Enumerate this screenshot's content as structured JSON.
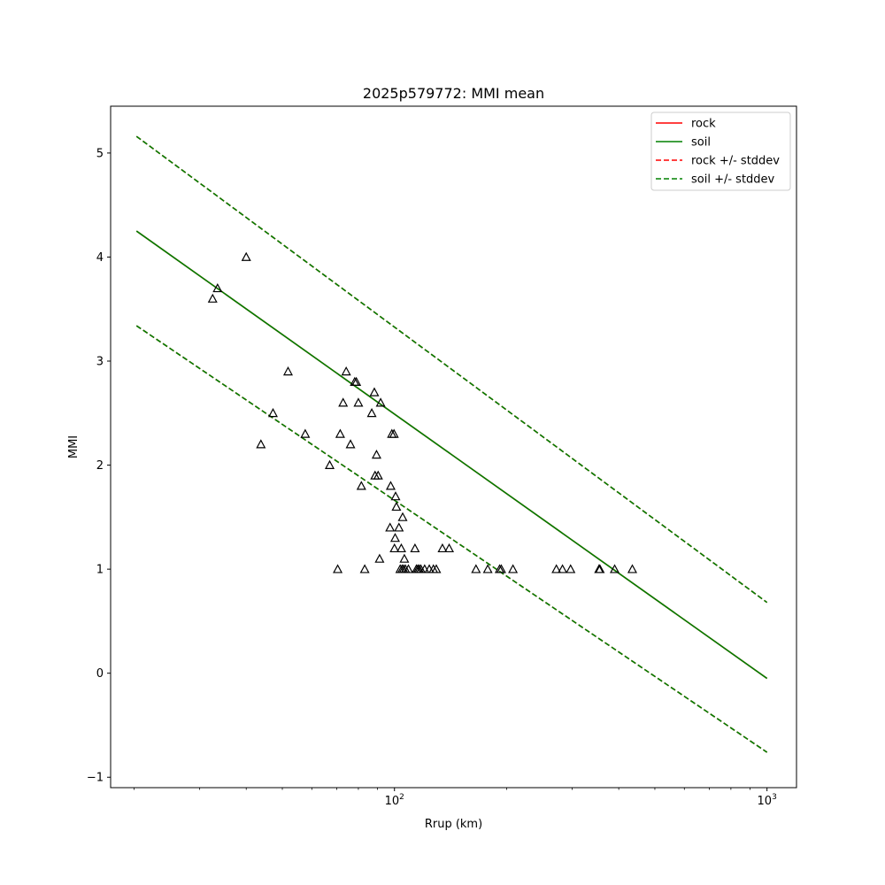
{
  "chart_data": {
    "type": "scatter",
    "title": "2025p579772: MMI mean",
    "xlabel": "Rrup (km)",
    "ylabel": "MMI",
    "xscale": "log",
    "xlim": [
      17.3,
      1200
    ],
    "ylim": [
      -1.1,
      5.45
    ],
    "x_ticks": [
      {
        "value": 100,
        "base": "10",
        "exp": "2"
      },
      {
        "value": 1000,
        "base": "10",
        "exp": "3"
      }
    ],
    "y_ticks": [
      {
        "value": -1,
        "label": "−1"
      },
      {
        "value": 0,
        "label": "0"
      },
      {
        "value": 1,
        "label": "1"
      },
      {
        "value": 2,
        "label": "2"
      },
      {
        "value": 3,
        "label": "3"
      },
      {
        "value": 4,
        "label": "4"
      },
      {
        "value": 5,
        "label": "5"
      }
    ],
    "grid": false,
    "legend_position": "top-right",
    "series": [
      {
        "name": "rock",
        "style": "solid",
        "color": "#ff0000",
        "x": [
          20.3,
          1000
        ],
        "y": [
          4.25,
          -0.05
        ]
      },
      {
        "name": "soil",
        "style": "solid",
        "color": "#008000",
        "x": [
          20.3,
          1000
        ],
        "y": [
          4.25,
          -0.05
        ]
      },
      {
        "name": "rock +/- stddev",
        "style": "dashed",
        "color": "#ff0000",
        "x": [
          20.3,
          1000
        ],
        "y": [
          5.16,
          0.68
        ],
        "y_lower": [
          3.34,
          -0.76
        ]
      },
      {
        "name": "soil +/- stddev",
        "style": "dashed",
        "color": "#008000",
        "x": [
          20.3,
          1000
        ],
        "y": [
          5.16,
          0.68
        ],
        "y_lower": [
          3.34,
          -0.76
        ]
      }
    ],
    "observations": {
      "marker": "triangle",
      "color": "#000000",
      "points": [
        [
          32.5,
          3.6
        ],
        [
          33.5,
          3.7
        ],
        [
          40.0,
          4.0
        ],
        [
          43.8,
          2.2
        ],
        [
          47.2,
          2.5
        ],
        [
          51.8,
          2.9
        ],
        [
          57.6,
          2.3
        ],
        [
          67.0,
          2.0
        ],
        [
          70.4,
          1.0
        ],
        [
          71.5,
          2.3
        ],
        [
          72.8,
          2.6
        ],
        [
          74.2,
          2.9
        ],
        [
          76.2,
          2.2
        ],
        [
          78.2,
          2.8
        ],
        [
          79.0,
          2.8
        ],
        [
          80.0,
          2.6
        ],
        [
          81.5,
          1.8
        ],
        [
          83.2,
          1.0
        ],
        [
          86.9,
          2.5
        ],
        [
          88.3,
          2.7
        ],
        [
          88.7,
          1.9
        ],
        [
          89.5,
          2.1
        ],
        [
          90.4,
          1.9
        ],
        [
          91.2,
          1.1
        ],
        [
          91.8,
          2.6
        ],
        [
          97.3,
          1.4
        ],
        [
          97.7,
          1.8
        ],
        [
          98.4,
          2.3
        ],
        [
          99.7,
          2.3
        ],
        [
          100.0,
          1.2
        ],
        [
          100.4,
          1.3
        ],
        [
          100.7,
          1.7
        ],
        [
          101.2,
          1.6
        ],
        [
          102.8,
          1.4
        ],
        [
          103.6,
          1.0
        ],
        [
          104.3,
          1.2
        ],
        [
          104.8,
          1.0
        ],
        [
          105.2,
          1.5
        ],
        [
          105.8,
          1.0
        ],
        [
          106.3,
          1.1
        ],
        [
          107.0,
          1.0
        ],
        [
          109.0,
          1.0
        ],
        [
          113.5,
          1.2
        ],
        [
          114.5,
          1.0
        ],
        [
          115.5,
          1.0
        ],
        [
          116.5,
          1.0
        ],
        [
          117.7,
          1.0
        ],
        [
          120.5,
          1.0
        ],
        [
          124.0,
          1.0
        ],
        [
          127.2,
          1.0
        ],
        [
          129.5,
          1.0
        ],
        [
          134.5,
          1.2
        ],
        [
          140.2,
          1.2
        ],
        [
          165.5,
          1.0
        ],
        [
          178.0,
          1.0
        ],
        [
          191.5,
          1.0
        ],
        [
          193.5,
          1.0
        ],
        [
          208.0,
          1.0
        ],
        [
          272.0,
          1.0
        ],
        [
          282.5,
          1.0
        ],
        [
          297.0,
          1.0
        ],
        [
          354.0,
          1.0
        ],
        [
          356.0,
          1.0
        ],
        [
          390.0,
          1.0
        ],
        [
          435.0,
          1.0
        ]
      ]
    }
  }
}
